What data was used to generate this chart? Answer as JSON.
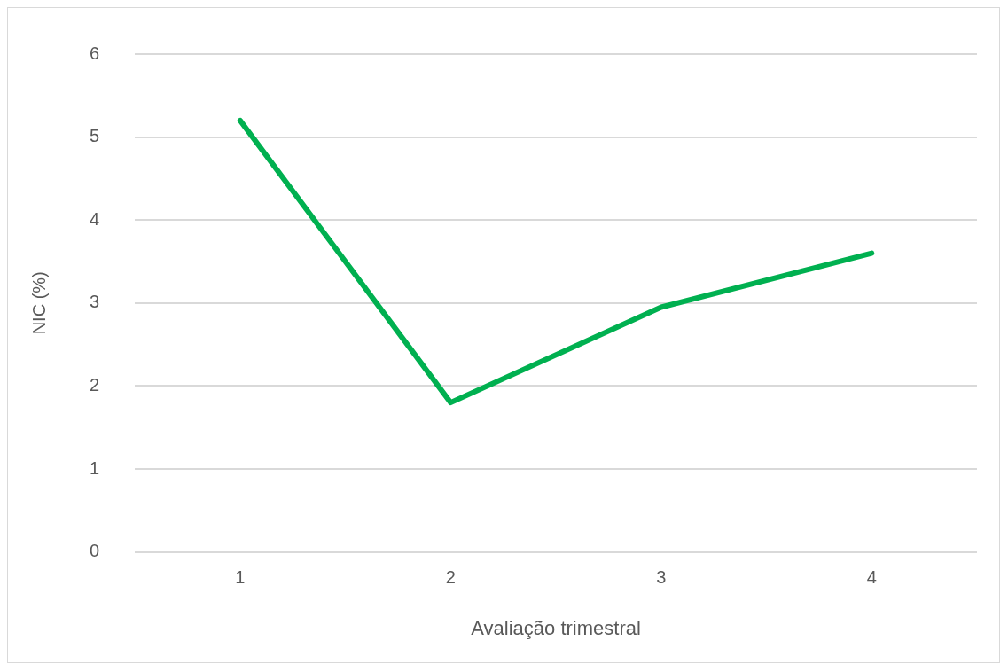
{
  "chart_data": {
    "type": "line",
    "xlabel": "Avaliação trimestral",
    "ylabel": "NIC (%)",
    "categories": [
      "1",
      "2",
      "3",
      "4"
    ],
    "series": [
      {
        "color": "#00b050",
        "values": [
          5.2,
          1.8,
          2.95,
          3.6
        ]
      }
    ],
    "ylim": [
      0,
      6
    ],
    "yticks": [
      0,
      1,
      2,
      3,
      4,
      5,
      6
    ],
    "grid": "y",
    "legend": false,
    "marker": "none",
    "line_style": "solid"
  }
}
